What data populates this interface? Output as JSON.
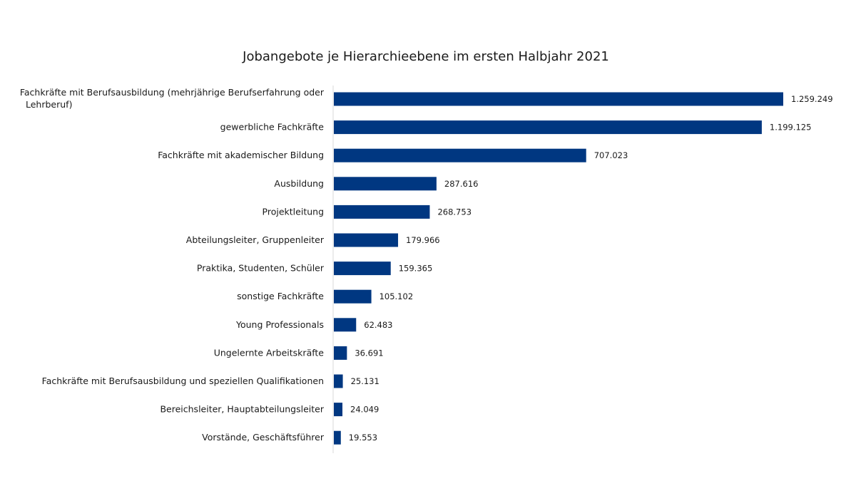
{
  "chart_data": {
    "type": "bar",
    "orientation": "horizontal",
    "title": "Jobangebote je Hierarchieebene im ersten Halbjahr 2021",
    "xlabel": "",
    "ylabel": "",
    "grid": false,
    "legend": "none",
    "bar_color": "#003781",
    "xlim": [
      0,
      1300000
    ],
    "categories": [
      "Fachkräfte mit Berufsausbildung (mehrjährige Berufserfahrung oder Lehrberuf)",
      "gewerbliche Fachkräfte",
      "Fachkräfte mit akademischer Bildung",
      "Ausbildung",
      "Projektleitung",
      "Abteilungsleiter, Gruppenleiter",
      "Praktika, Studenten, Schüler",
      "sonstige Fachkräfte",
      "Young Professionals",
      "Ungelernte Arbeitskräfte",
      "Fachkräfte mit Berufsausbildung und speziellen Qualifikationen",
      "Bereichsleiter, Hauptabteilungsleiter",
      "Vorstände, Geschäftsführer"
    ],
    "values": [
      1259249,
      1199125,
      707023,
      287616,
      268753,
      179966,
      159365,
      105102,
      62483,
      36691,
      25131,
      24049,
      19553
    ],
    "value_labels": [
      "1.259.249",
      "1.199.125",
      "707.023",
      "287.616",
      "268.753",
      "179.966",
      "159.365",
      "105.102",
      "62.483",
      "36.691",
      "25.131",
      "24.049",
      "19.553"
    ]
  }
}
